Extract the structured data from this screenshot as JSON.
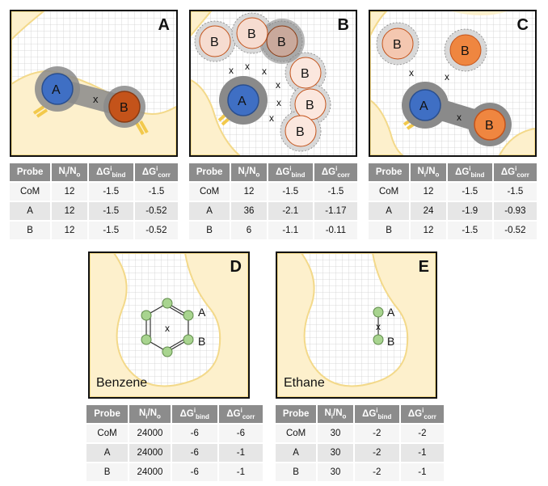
{
  "panels": [
    {
      "id": "A",
      "label": "A",
      "caption": "",
      "table": {
        "headers": {
          "probe": "Probe",
          "ratio_main": "N",
          "ratio_sub1": "i",
          "ratio_mid": "/N",
          "ratio_sub2": "o",
          "bind_main": "ΔG",
          "bind_sup": "i",
          "bind_sub": "bind",
          "corr_main": "ΔG",
          "corr_sup": "i",
          "corr_sub": "corr"
        },
        "rows": [
          {
            "probe": "CoM",
            "ratio": "12",
            "bind": "-1.5",
            "corr": "-1.5"
          },
          {
            "probe": "A",
            "ratio": "12",
            "bind": "-1.5",
            "corr": "-0.52"
          },
          {
            "probe": "B",
            "ratio": "12",
            "bind": "-1.5",
            "corr": "-0.52"
          }
        ]
      }
    },
    {
      "id": "B",
      "label": "B",
      "caption": "",
      "table": {
        "headers": {
          "probe": "Probe",
          "ratio_main": "N",
          "ratio_sub1": "i",
          "ratio_mid": "/N",
          "ratio_sub2": "o",
          "bind_main": "ΔG",
          "bind_sup": "i",
          "bind_sub": "bind",
          "corr_main": "ΔG",
          "corr_sup": "i",
          "corr_sub": "corr"
        },
        "rows": [
          {
            "probe": "CoM",
            "ratio": "12",
            "bind": "-1.5",
            "corr": "-1.5"
          },
          {
            "probe": "A",
            "ratio": "36",
            "bind": "-2.1",
            "corr": "-1.17"
          },
          {
            "probe": "B",
            "ratio": "6",
            "bind": "-1.1",
            "corr": "-0.11"
          }
        ]
      }
    },
    {
      "id": "C",
      "label": "C",
      "caption": "",
      "table": {
        "headers": {
          "probe": "Probe",
          "ratio_main": "N",
          "ratio_sub1": "i",
          "ratio_mid": "/N",
          "ratio_sub2": "o",
          "bind_main": "ΔG",
          "bind_sup": "i",
          "bind_sub": "bind",
          "corr_main": "ΔG",
          "corr_sup": "i",
          "corr_sub": "corr"
        },
        "rows": [
          {
            "probe": "CoM",
            "ratio": "12",
            "bind": "-1.5",
            "corr": "-1.5"
          },
          {
            "probe": "A",
            "ratio": "24",
            "bind": "-1.9",
            "corr": "-0.93"
          },
          {
            "probe": "B",
            "ratio": "12",
            "bind": "-1.5",
            "corr": "-0.52"
          }
        ]
      }
    },
    {
      "id": "D",
      "label": "D",
      "caption": "Benzene",
      "table": {
        "headers": {
          "probe": "Probe",
          "ratio_main": "N",
          "ratio_sub1": "i",
          "ratio_mid": "/N",
          "ratio_sub2": "o",
          "bind_main": "ΔG",
          "bind_sup": "i",
          "bind_sub": "bind",
          "corr_main": "ΔG",
          "corr_sup": "i",
          "corr_sub": "corr"
        },
        "rows": [
          {
            "probe": "CoM",
            "ratio": "24000",
            "bind": "-6",
            "corr": "-6"
          },
          {
            "probe": "A",
            "ratio": "24000",
            "bind": "-6",
            "corr": "-1"
          },
          {
            "probe": "B",
            "ratio": "24000",
            "bind": "-6",
            "corr": "-1"
          }
        ]
      }
    },
    {
      "id": "E",
      "label": "E",
      "caption": "Ethane",
      "table": {
        "headers": {
          "probe": "Probe",
          "ratio_main": "N",
          "ratio_sub1": "i",
          "ratio_mid": "/N",
          "ratio_sub2": "o",
          "bind_main": "ΔG",
          "bind_sup": "i",
          "bind_sub": "bind",
          "corr_main": "ΔG",
          "corr_sup": "i",
          "corr_sub": "corr"
        },
        "rows": [
          {
            "probe": "CoM",
            "ratio": "30",
            "bind": "-2",
            "corr": "-2"
          },
          {
            "probe": "A",
            "ratio": "30",
            "bind": "-2",
            "corr": "-1"
          },
          {
            "probe": "B",
            "ratio": "30",
            "bind": "-2",
            "corr": "-1"
          }
        ]
      }
    }
  ],
  "atoms": {
    "a": "A",
    "b": "B",
    "center": "x"
  },
  "colors": {
    "pocket": "#fdf0cc",
    "pocket_edge": "#f3d98a",
    "grid": "#d0d0d0",
    "atom_a": "#3f6fc4",
    "atom_b_dark": "#c4531a",
    "atom_b_mid": "#ef8640",
    "atom_b_light": "#f4c7b0",
    "probe_halo": "#8a8a8a",
    "benzene": "#a8d48f",
    "anchor": "#f2c94c"
  }
}
